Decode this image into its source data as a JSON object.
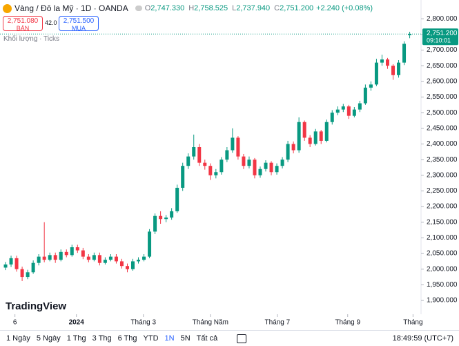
{
  "header": {
    "symbol": "Vàng / Đô la Mỹ · 1D · OANDA",
    "ohlc": [
      {
        "label": "O",
        "value": "2,747.330"
      },
      {
        "label": "H",
        "value": "2,758.525"
      },
      {
        "label": "L",
        "value": "2,737.940"
      },
      {
        "label": "C",
        "value": "2,751.200"
      }
    ],
    "change": "+2.240 (+0.08%)",
    "sell_price": "2,751.080",
    "sell_label": "BÁN",
    "spread": "42.0",
    "buy_price": "2,751.500",
    "buy_label": "MUA",
    "indicator": "Khối lượng · Ticks"
  },
  "chart_data": {
    "type": "candlestick",
    "up_color": "#089981",
    "down_color": "#f23645",
    "grid": false,
    "last_price_label": "2,751.200",
    "last_time": "09:10:01",
    "xlim": [
      -1,
      74.8
    ],
    "xticks": [
      {
        "value": 1.7,
        "label": "6"
      },
      {
        "value": 12.8,
        "label": "2024"
      },
      {
        "value": 24.9,
        "label": "Tháng 3"
      },
      {
        "value": 37,
        "label": "Tháng Năm"
      },
      {
        "value": 49.1,
        "label": "Tháng 7"
      },
      {
        "value": 61.8,
        "label": "Tháng 9"
      },
      {
        "value": 73.6,
        "label": "Tháng"
      }
    ],
    "ylim": [
      1856,
      2860
    ],
    "yticks": [
      {
        "value": 1900,
        "label": "1,900.000"
      },
      {
        "value": 1950,
        "label": "1,950.000"
      },
      {
        "value": 2000,
        "label": "2,000.000"
      },
      {
        "value": 2050,
        "label": "2,050.000"
      },
      {
        "value": 2100,
        "label": "2,100.000"
      },
      {
        "value": 2150,
        "label": "2,150.000"
      },
      {
        "value": 2200,
        "label": "2,200.000"
      },
      {
        "value": 2250,
        "label": "2,250.000"
      },
      {
        "value": 2300,
        "label": "2,300.000"
      },
      {
        "value": 2350,
        "label": "2,350.000"
      },
      {
        "value": 2400,
        "label": "2,400.000"
      },
      {
        "value": 2450,
        "label": "2,450.000"
      },
      {
        "value": 2500,
        "label": "2,500.000"
      },
      {
        "value": 2550,
        "label": "2,550.000"
      },
      {
        "value": 2600,
        "label": "2,600.000"
      },
      {
        "value": 2650,
        "label": "2,650.000"
      },
      {
        "value": 2700,
        "label": "2,700.000"
      },
      {
        "value": 2750,
        "label": "2,750.000"
      },
      {
        "value": 2800,
        "label": "2,800.000"
      }
    ],
    "open": [
      2005,
      2015,
      2035,
      2000,
      1975,
      1990,
      2020,
      2040,
      2030,
      2045,
      2030,
      2055,
      2045,
      2070,
      2060,
      2040,
      2030,
      2045,
      2020,
      2030,
      2040,
      2025,
      2010,
      2000,
      2025,
      2030,
      2040,
      2120,
      2170,
      2160,
      2165,
      2185,
      2260,
      2330,
      2360,
      2390,
      2340,
      2330,
      2300,
      2310,
      2350,
      2380,
      2420,
      2360,
      2330,
      2350,
      2300,
      2320,
      2340,
      2310,
      2330,
      2350,
      2400,
      2380,
      2470,
      2420,
      2400,
      2440,
      2410,
      2470,
      2500,
      2510,
      2520,
      2490,
      2510,
      2530,
      2580,
      2590,
      2660,
      2670,
      2650,
      2620,
      2660,
      2747.33
    ],
    "high": [
      2023,
      2043,
      2043,
      2008,
      1998,
      2028,
      2048,
      2150,
      2053,
      2053,
      2063,
      2063,
      2078,
      2078,
      2068,
      2048,
      2053,
      2053,
      2038,
      2048,
      2048,
      2033,
      2018,
      2033,
      2038,
      2048,
      2128,
      2178,
      2185,
      2173,
      2195,
      2270,
      2340,
      2370,
      2430,
      2400,
      2350,
      2338,
      2320,
      2358,
      2390,
      2450,
      2425,
      2368,
      2360,
      2355,
      2328,
      2348,
      2345,
      2338,
      2358,
      2410,
      2408,
      2485,
      2475,
      2428,
      2448,
      2445,
      2478,
      2508,
      2520,
      2528,
      2525,
      2518,
      2538,
      2590,
      2600,
      2672,
      2685,
      2675,
      2655,
      2668,
      2728,
      2758.525
    ],
    "low": [
      1997,
      2007,
      1992,
      1962,
      1968,
      1985,
      2012,
      2022,
      2025,
      2020,
      2025,
      2038,
      2040,
      2052,
      2032,
      2022,
      2025,
      2012,
      2015,
      2025,
      2018,
      2002,
      1990,
      1995,
      2018,
      2025,
      2035,
      2112,
      2145,
      2150,
      2158,
      2180,
      2250,
      2320,
      2350,
      2330,
      2318,
      2285,
      2290,
      2302,
      2342,
      2372,
      2350,
      2320,
      2322,
      2290,
      2292,
      2312,
      2300,
      2302,
      2322,
      2342,
      2370,
      2372,
      2410,
      2390,
      2395,
      2400,
      2405,
      2462,
      2492,
      2502,
      2480,
      2485,
      2502,
      2525,
      2570,
      2585,
      2650,
      2640,
      2605,
      2612,
      2652,
      2737.94
    ],
    "close": [
      2015,
      2035,
      2000,
      1975,
      1990,
      2020,
      2040,
      2030,
      2045,
      2030,
      2055,
      2045,
      2070,
      2060,
      2040,
      2030,
      2045,
      2020,
      2030,
      2040,
      2025,
      2010,
      2000,
      2025,
      2030,
      2040,
      2120,
      2170,
      2160,
      2165,
      2185,
      2260,
      2330,
      2360,
      2390,
      2340,
      2330,
      2300,
      2310,
      2350,
      2380,
      2420,
      2360,
      2330,
      2350,
      2300,
      2320,
      2340,
      2310,
      2330,
      2350,
      2400,
      2380,
      2470,
      2420,
      2400,
      2440,
      2410,
      2470,
      2500,
      2510,
      2520,
      2490,
      2510,
      2530,
      2580,
      2590,
      2660,
      2670,
      2650,
      2620,
      2660,
      2720,
      2751.2
    ]
  },
  "branding": "TradingView",
  "toolbar": {
    "ranges": [
      "1 Ngày",
      "5 Ngày",
      "1 Thg",
      "3 Thg",
      "6 Thg",
      "YTD",
      "1N",
      "5N",
      "Tất cả"
    ],
    "active": 6,
    "clock": "18:49:59 (UTC+7)"
  }
}
